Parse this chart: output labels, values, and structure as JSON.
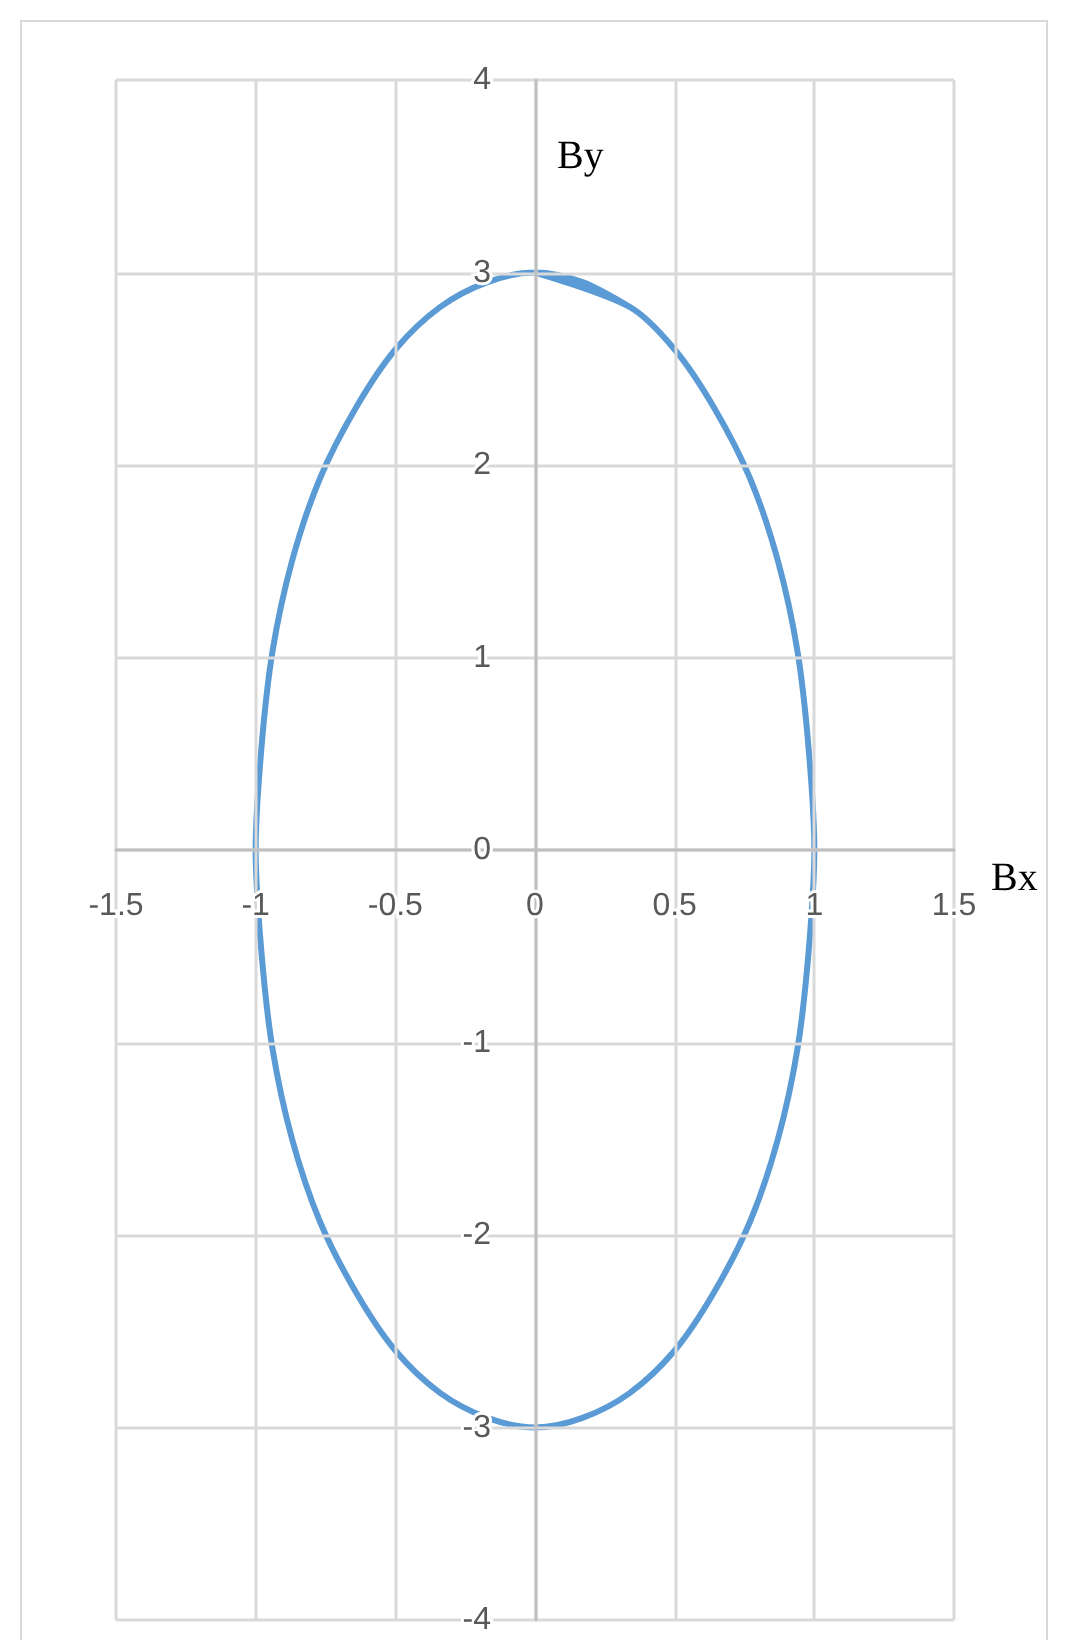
{
  "chart_data": {
    "type": "line",
    "xlabel": "Bx",
    "ylabel": "By",
    "x": [
      0,
      0.34,
      0.5,
      0.64,
      0.77,
      0.87,
      0.94,
      0.98,
      1,
      0.98,
      0.94,
      0.87,
      0.77,
      0.64,
      0.5,
      0.34,
      0.17,
      0,
      -0.17,
      -0.34,
      -0.5,
      -0.64,
      -0.77,
      -0.87,
      -0.94,
      -0.98,
      -1,
      -0.98,
      -0.94,
      -0.87,
      -0.77,
      -0.64,
      -0.5,
      -0.34,
      -0.17,
      0,
      0.17,
      0.34
    ],
    "values": [
      3,
      2.82,
      2.6,
      2.3,
      1.93,
      1.5,
      1.03,
      0.52,
      0,
      -0.52,
      -1.03,
      -1.5,
      -1.93,
      -2.3,
      -2.6,
      -2.82,
      -2.95,
      -3,
      -2.95,
      -2.82,
      -2.6,
      -2.3,
      -1.93,
      -1.5,
      -1.03,
      -0.52,
      0,
      0.52,
      1.03,
      1.5,
      1.93,
      2.3,
      2.6,
      2.82,
      2.95,
      3,
      2.95,
      2.82
    ],
    "color": "#5b9bd5",
    "xlim": [
      -1.5,
      1.5
    ],
    "xticks": [
      -1.5,
      -1,
      -0.5,
      0,
      0.5,
      1,
      1.5
    ],
    "ylim": [
      -4,
      4
    ],
    "yticks": [
      -4,
      -3,
      -2,
      -1,
      0,
      1,
      2,
      3,
      4
    ],
    "grid": true,
    "marker": "none",
    "line_style": "solid"
  }
}
